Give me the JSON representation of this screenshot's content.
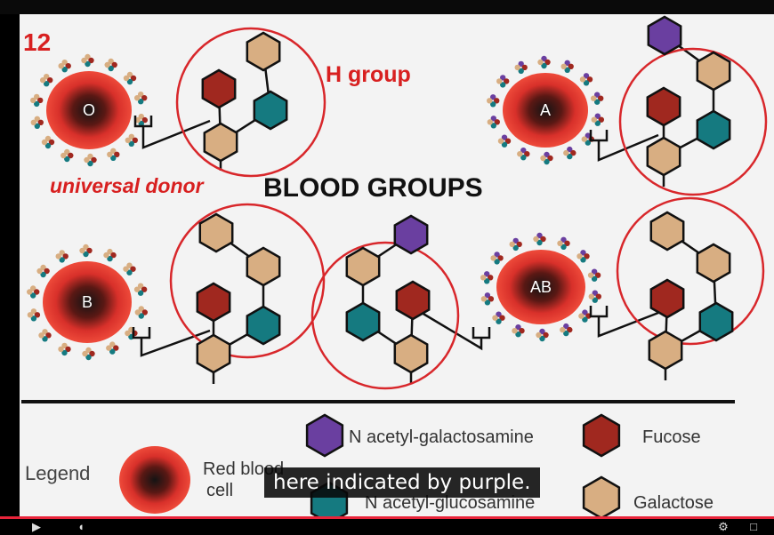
{
  "slide": {
    "number": "12",
    "title": "BLOOD GROUPS",
    "h_group_label": "H group",
    "universal_donor": "universal donor",
    "cells": {
      "o": "O",
      "a": "A",
      "b": "B",
      "ab": "AB"
    }
  },
  "legend": {
    "title": "Legend",
    "rbc_line1": "Red blood",
    "rbc_line2": "cell",
    "nag": "N acetyl-galactosamine",
    "fucose": "Fucose",
    "nagluc": "N acetyl-glucosamine",
    "galactose": "Galactose"
  },
  "caption": {
    "text": "here indicated by purple."
  },
  "colors": {
    "red_cell": "#e8332b",
    "purple": "#6a3fa0",
    "dark_red": "#a0281f",
    "teal": "#157a80",
    "tan": "#d8ae82",
    "circle_outline": "#d8272b",
    "label_red": "#d82020",
    "progress": "#e8243a"
  },
  "player": {
    "icons": [
      "play-icon",
      "volume-icon",
      "settings-icon",
      "fullscreen-icon"
    ]
  }
}
